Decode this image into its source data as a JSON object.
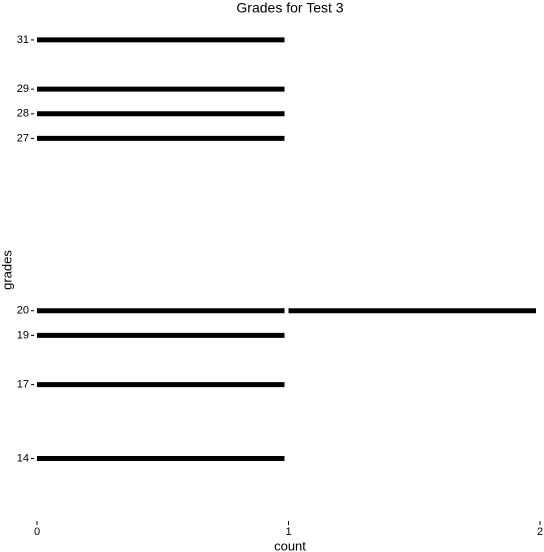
{
  "chart_data": {
    "type": "hbar",
    "title": "Grades for Test 3",
    "x_label": "count",
    "y_label": "grades",
    "y": [
      31,
      29,
      28,
      27,
      20,
      19,
      17,
      14
    ],
    "values": [
      1,
      1,
      1,
      1,
      2,
      1,
      1,
      1
    ],
    "color": "#000000",
    "xlim": [
      0,
      2
    ],
    "xticks": [
      0,
      1,
      2
    ],
    "ylim": [
      11.5,
      32.5
    ],
    "yticks": [
      31,
      29,
      28,
      27,
      20,
      19,
      17,
      14
    ],
    "grid": false
  }
}
